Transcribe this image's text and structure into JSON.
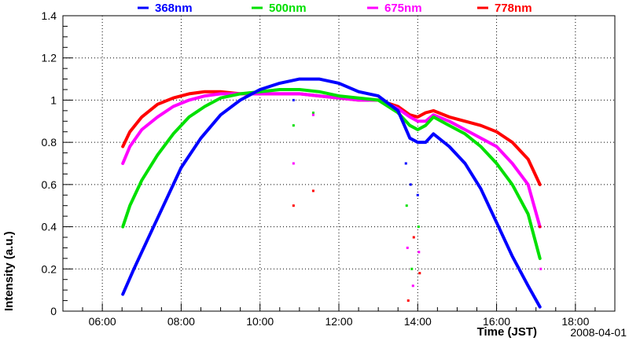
{
  "chart_data": {
    "type": "line",
    "title": "",
    "xlabel": "Time (JST)",
    "ylabel": "Intensity (a.u.)",
    "date_label": "2008-04-01",
    "xlim": [
      5.0,
      19.0
    ],
    "ylim": [
      0,
      1.4
    ],
    "grid": true,
    "legend_position": "top",
    "x_ticks": [
      {
        "value": 6,
        "label": "06:00"
      },
      {
        "value": 8,
        "label": "08:00"
      },
      {
        "value": 10,
        "label": "10:00"
      },
      {
        "value": 12,
        "label": "12:00"
      },
      {
        "value": 14,
        "label": "14:00"
      },
      {
        "value": 16,
        "label": "16:00"
      },
      {
        "value": 18,
        "label": "18:00"
      }
    ],
    "y_ticks": [
      {
        "value": 0,
        "label": "0"
      },
      {
        "value": 0.2,
        "label": "0.2"
      },
      {
        "value": 0.4,
        "label": "0.4"
      },
      {
        "value": 0.6,
        "label": "0.6"
      },
      {
        "value": 0.8,
        "label": "0.8"
      },
      {
        "value": 1.0,
        "label": "1"
      },
      {
        "value": 1.2,
        "label": "1.2"
      },
      {
        "value": 1.4,
        "label": "1.4"
      }
    ],
    "series": [
      {
        "name": "368nm",
        "color": "#0000ff",
        "x": [
          6.52,
          6.8,
          7.2,
          7.6,
          8.0,
          8.5,
          9.0,
          9.5,
          10.0,
          10.5,
          11.0,
          11.5,
          12.0,
          12.5,
          13.0,
          13.5,
          13.8,
          14.0,
          14.2,
          14.4,
          14.8,
          15.2,
          15.6,
          16.0,
          16.4,
          16.8,
          17.1
        ],
        "values": [
          0.08,
          0.2,
          0.36,
          0.52,
          0.68,
          0.82,
          0.93,
          1.0,
          1.05,
          1.08,
          1.1,
          1.1,
          1.08,
          1.04,
          1.02,
          0.95,
          0.82,
          0.8,
          0.8,
          0.84,
          0.78,
          0.7,
          0.58,
          0.42,
          0.26,
          0.12,
          0.02
        ]
      },
      {
        "name": "500nm",
        "color": "#00e000",
        "x": [
          6.52,
          6.7,
          7.0,
          7.4,
          7.8,
          8.2,
          8.6,
          9.0,
          9.5,
          10.0,
          10.5,
          11.0,
          11.5,
          12.0,
          12.5,
          13.0,
          13.5,
          13.8,
          14.0,
          14.2,
          14.4,
          14.8,
          15.2,
          15.6,
          16.0,
          16.4,
          16.8,
          17.1
        ],
        "values": [
          0.4,
          0.5,
          0.62,
          0.74,
          0.84,
          0.92,
          0.97,
          1.01,
          1.03,
          1.04,
          1.05,
          1.05,
          1.04,
          1.02,
          1.01,
          1.0,
          0.94,
          0.88,
          0.86,
          0.88,
          0.92,
          0.88,
          0.84,
          0.78,
          0.7,
          0.6,
          0.46,
          0.25
        ]
      },
      {
        "name": "675nm",
        "color": "#ff00ff",
        "x": [
          6.52,
          6.7,
          7.0,
          7.4,
          7.8,
          8.2,
          8.6,
          9.0,
          9.5,
          10.0,
          10.5,
          11.0,
          11.5,
          12.0,
          12.5,
          13.0,
          13.5,
          13.8,
          14.0,
          14.2,
          14.4,
          14.8,
          15.2,
          15.6,
          16.0,
          16.4,
          16.8,
          17.1
        ],
        "values": [
          0.7,
          0.78,
          0.86,
          0.92,
          0.97,
          1.0,
          1.02,
          1.03,
          1.03,
          1.03,
          1.03,
          1.03,
          1.02,
          1.01,
          1.0,
          1.0,
          0.96,
          0.92,
          0.9,
          0.9,
          0.93,
          0.9,
          0.86,
          0.82,
          0.78,
          0.7,
          0.6,
          0.4
        ]
      },
      {
        "name": "778nm",
        "color": "#ff0000",
        "x": [
          6.52,
          6.7,
          7.0,
          7.4,
          7.8,
          8.2,
          8.6,
          9.0,
          9.5,
          10.0,
          10.5,
          11.0,
          11.5,
          12.0,
          12.5,
          13.0,
          13.5,
          13.8,
          14.0,
          14.2,
          14.4,
          14.8,
          15.2,
          15.6,
          16.0,
          16.4,
          16.8,
          17.1
        ],
        "values": [
          0.78,
          0.85,
          0.92,
          0.98,
          1.01,
          1.03,
          1.04,
          1.04,
          1.03,
          1.03,
          1.03,
          1.03,
          1.02,
          1.01,
          1.0,
          1.0,
          0.97,
          0.93,
          0.92,
          0.94,
          0.95,
          0.92,
          0.9,
          0.88,
          0.85,
          0.8,
          0.72,
          0.6
        ]
      }
    ],
    "outliers": [
      {
        "series": "500nm",
        "x": 10.85,
        "y": 0.88
      },
      {
        "series": "675nm",
        "x": 10.85,
        "y": 0.7
      },
      {
        "series": "778nm",
        "x": 10.85,
        "y": 0.5
      },
      {
        "series": "368nm",
        "x": 10.85,
        "y": 1.0
      },
      {
        "series": "500nm",
        "x": 11.35,
        "y": 0.94
      },
      {
        "series": "675nm",
        "x": 11.35,
        "y": 0.93
      },
      {
        "series": "778nm",
        "x": 11.35,
        "y": 0.57
      },
      {
        "series": "368nm",
        "x": 13.7,
        "y": 0.7
      },
      {
        "series": "500nm",
        "x": 13.72,
        "y": 0.5
      },
      {
        "series": "675nm",
        "x": 13.74,
        "y": 0.3
      },
      {
        "series": "778nm",
        "x": 13.76,
        "y": 0.05
      },
      {
        "series": "368nm",
        "x": 13.82,
        "y": 0.6
      },
      {
        "series": "500nm",
        "x": 13.85,
        "y": 0.2
      },
      {
        "series": "675nm",
        "x": 13.88,
        "y": 0.12
      },
      {
        "series": "778nm",
        "x": 13.9,
        "y": 0.35
      },
      {
        "series": "368nm",
        "x": 14.0,
        "y": 0.55
      },
      {
        "series": "500nm",
        "x": 14.02,
        "y": 0.4
      },
      {
        "series": "675nm",
        "x": 14.03,
        "y": 0.28
      },
      {
        "series": "778nm",
        "x": 14.05,
        "y": 0.18
      },
      {
        "series": "778nm",
        "x": 17.1,
        "y": 0.4
      },
      {
        "series": "675nm",
        "x": 17.12,
        "y": 0.2
      }
    ]
  }
}
